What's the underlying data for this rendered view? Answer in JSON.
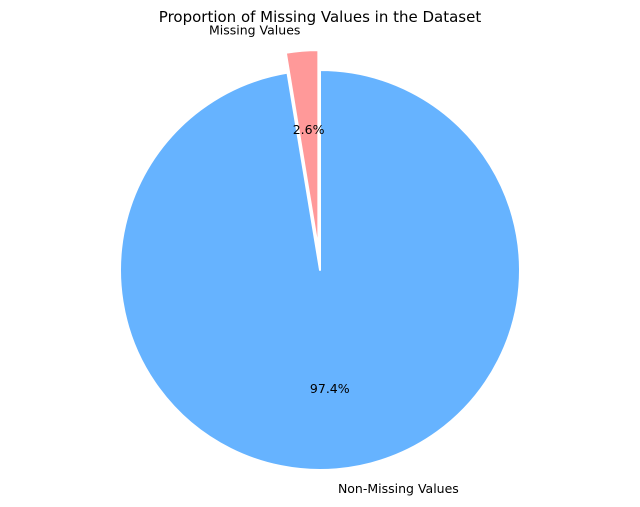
{
  "chart_data": {
    "type": "pie",
    "title": "Proportion of Missing Values in the Dataset",
    "slices": [
      {
        "label": "Missing Values",
        "value": 2.6,
        "pct_label": "2.6%",
        "color": "#ff9999",
        "exploded": true
      },
      {
        "label": "Non-Missing Values",
        "value": 97.4,
        "pct_label": "97.4%",
        "color": "#66b3ff",
        "exploded": false
      }
    ],
    "start_angle_deg": 90,
    "direction": "counterclockwise",
    "legend": "none"
  }
}
